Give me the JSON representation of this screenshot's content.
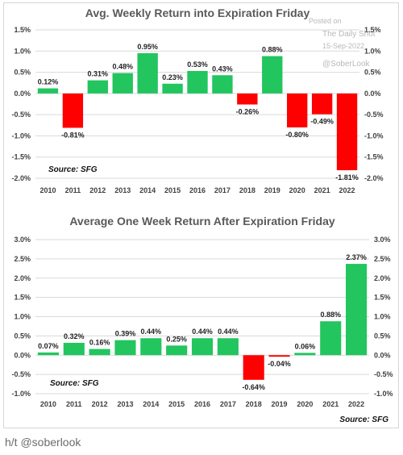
{
  "chart_data": [
    {
      "type": "bar",
      "title": "Avg. Weekly Return into Expiration Friday",
      "categories": [
        "2010",
        "2011",
        "2012",
        "2013",
        "2014",
        "2015",
        "2016",
        "2017",
        "2018",
        "2019",
        "2020",
        "2021",
        "2022"
      ],
      "values": [
        0.12,
        -0.81,
        0.31,
        0.48,
        0.95,
        0.23,
        0.53,
        0.43,
        -0.26,
        0.88,
        -0.8,
        -0.49,
        -1.81
      ],
      "data_labels": [
        "0.12%",
        "-0.81%",
        "0.31%",
        "0.48%",
        "0.95%",
        "0.23%",
        "0.53%",
        "0.43%",
        "-0.26%",
        "0.88%",
        "-0.80%",
        "-0.49%",
        "-1.81%"
      ],
      "ylim": [
        -2.0,
        1.5
      ],
      "yticks": [
        "1.5%",
        "1.0%",
        "0.5%",
        "0.0%",
        "-0.5%",
        "-1.0%",
        "-1.5%",
        "-2.0%"
      ],
      "yticks_right": [
        "1.5%",
        "1.0%",
        "0.5%",
        "0.0%",
        "-0.5%",
        "-1.0%",
        "-1.5%",
        "-2.0%"
      ],
      "grid": true,
      "source": "Source: SFG",
      "colors": {
        "positive": "#22c55e",
        "negative": "#ff0000"
      }
    },
    {
      "type": "bar",
      "title": "Average One Week Return After Expiration Friday",
      "categories": [
        "2010",
        "2011",
        "2012",
        "2013",
        "2014",
        "2015",
        "2016",
        "2017",
        "2018",
        "2019",
        "2020",
        "2021",
        "2022"
      ],
      "values": [
        0.07,
        0.32,
        0.16,
        0.39,
        0.44,
        0.25,
        0.44,
        0.44,
        -0.64,
        -0.04,
        0.06,
        0.88,
        2.37
      ],
      "data_labels": [
        "0.07%",
        "0.32%",
        "0.16%",
        "0.39%",
        "0.44%",
        "0.25%",
        "0.44%",
        "0.44%",
        "-0.64%",
        "-0.04%",
        "0.06%",
        "0.88%",
        "2.37%"
      ],
      "ylim": [
        -1.0,
        3.0
      ],
      "yticks": [
        "3.0%",
        "2.5%",
        "2.0%",
        "1.5%",
        "1.0%",
        "0.5%",
        "0.0%",
        "-0.5%",
        "-1.0%"
      ],
      "yticks_right": [
        "3.0%",
        "2.5%",
        "2.0%",
        "1.5%",
        "1.0%",
        "0.5%",
        "0.0%",
        "-0.5%",
        "-1.0%"
      ],
      "grid": true,
      "source": "Source: SFG",
      "source_bottom": "Source: SFG",
      "colors": {
        "positive": "#22c55e",
        "negative": "#ff0000"
      }
    }
  ],
  "watermark": {
    "line1": "Posted on",
    "line2": "The Daily Shot",
    "line3": "15-Sep-2022",
    "line4": "@SoberLook"
  },
  "credit": "h/t @soberlook"
}
